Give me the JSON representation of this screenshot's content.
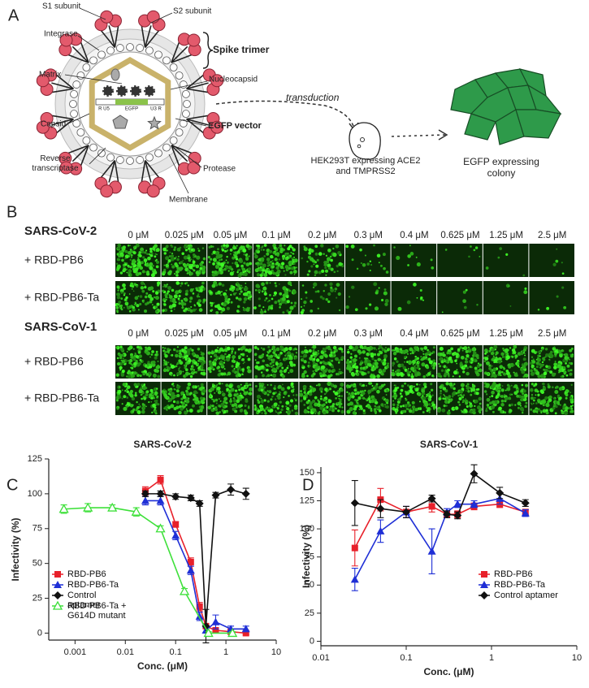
{
  "panel_labels": [
    "A",
    "B",
    "C",
    "D"
  ],
  "panel_a": {
    "labels": {
      "s1": "S1 subunit",
      "s2": "S2 subunit",
      "integrase": "Integrase",
      "matrix": "Matrix",
      "capsid": "Capsid",
      "rt": "Reverse transcriptase",
      "membrane": "Membrane",
      "protease": "Protease",
      "egfp_vector": "EGFP vector",
      "nucleocapsid": "Nucleocapsid",
      "spike_trimer": "Spike trimer"
    },
    "vector_parts": [
      "R U5",
      "EGFP",
      "U3 R"
    ],
    "transduction": "transduction",
    "cell": "HEK293T expressing ACE2 and TMPRSS2",
    "colony": "EGFP  expressing colony"
  },
  "panel_b": {
    "groups": [
      {
        "virus": "SARS-CoV-2",
        "concentrations": [
          "0 μM",
          "0.025 μM",
          "0.05 μM",
          "0.1 μM",
          "0.2 μM",
          "0.3 μM",
          "0.4 μM",
          "0.625 μM",
          "1.25 μM",
          "2.5 μM"
        ],
        "treatments": [
          "+ RBD-PB6",
          "+ RBD-PB6-Ta"
        ]
      },
      {
        "virus": "SARS-CoV-1",
        "concentrations": [
          "0 μM",
          "0.025 μM",
          "0.05 μM",
          "0.1 μM",
          "0.2 μM",
          "0.3 μM",
          "0.4 μM",
          "0.625 μM",
          "1.25 μM",
          "2.5 μM"
        ],
        "treatments": [
          "+ RBD-PB6",
          "+ RBD-PB6-Ta"
        ]
      }
    ]
  },
  "chart_data": [
    {
      "type": "scatter",
      "title": "SARS-CoV-2",
      "x_label": "Conc. (μM)",
      "y_label": "Infectivity (%)",
      "xscale": "log",
      "xlim": [
        0.0003,
        10
      ],
      "xticks": [
        0.001,
        0.01,
        0.1,
        1,
        10
      ],
      "ylim": [
        -5,
        125
      ],
      "yticks": [
        0,
        25,
        50,
        75,
        100,
        125
      ],
      "legend": "lower left",
      "series": [
        {
          "name": "RBD-PB6",
          "color": "#e8202a",
          "marker": "square",
          "x": [
            0.025,
            0.05,
            0.1,
            0.2,
            0.3,
            0.4,
            0.625,
            1.25,
            2.5
          ],
          "values": [
            102,
            110,
            78,
            51,
            19,
            5,
            2,
            1,
            0
          ],
          "errors": [
            3,
            3,
            2,
            3,
            3,
            1,
            1,
            1,
            1
          ]
        },
        {
          "name": "RBD-PB6-Ta",
          "color": "#1f2fd6",
          "marker": "triangle",
          "x": [
            0.025,
            0.05,
            0.1,
            0.2,
            0.3,
            0.4,
            0.625,
            1.25,
            2.5
          ],
          "values": [
            95,
            95,
            70,
            45,
            12,
            2,
            8,
            3,
            3
          ],
          "errors": [
            3,
            3,
            3,
            3,
            3,
            2,
            5,
            2,
            2
          ]
        },
        {
          "name": "Control aptamer",
          "color": "#111111",
          "marker": "diamond",
          "x": [
            0.025,
            0.05,
            0.1,
            0.2,
            0.3,
            0.4,
            0.625,
            1.25,
            2.5
          ],
          "values": [
            100,
            100,
            98,
            97,
            93,
            5,
            99,
            103,
            100
          ],
          "errors": [
            2,
            2,
            2,
            2,
            2,
            12,
            2,
            4,
            4
          ]
        },
        {
          "name": "RBD-PB6-Ta + G614D mutant",
          "color": "#3ee03a",
          "marker": "triangle-open",
          "x": [
            0.0006,
            0.0018,
            0.0055,
            0.0165,
            0.05,
            0.15,
            0.45,
            1.35
          ],
          "values": [
            89,
            90,
            90,
            87,
            75,
            30,
            0,
            0
          ],
          "errors": [
            3,
            3,
            2,
            3,
            2,
            2,
            1,
            1
          ]
        }
      ]
    },
    {
      "type": "scatter",
      "title": "SARS-CoV-1",
      "x_label": "Conc. (μM)",
      "y_label": "Infectivity (%)",
      "xscale": "log",
      "xlim": [
        0.01,
        10
      ],
      "xticks": [
        0.01,
        0.1,
        1,
        10
      ],
      "ylim": [
        -4,
        155
      ],
      "yticks": [
        0,
        25,
        50,
        75,
        100,
        125,
        150
      ],
      "legend": "right",
      "series": [
        {
          "name": "RBD-PB6",
          "color": "#e8202a",
          "marker": "square",
          "x": [
            0.025,
            0.05,
            0.1,
            0.2,
            0.3,
            0.4,
            0.625,
            1.25,
            2.5
          ],
          "values": [
            83,
            126,
            115,
            120,
            113,
            113,
            120,
            122,
            115
          ],
          "errors": [
            16,
            10,
            5,
            5,
            3,
            3,
            3,
            3,
            2
          ]
        },
        {
          "name": "RBD-PB6-Ta",
          "color": "#1f2fd6",
          "marker": "triangle",
          "x": [
            0.025,
            0.05,
            0.1,
            0.2,
            0.3,
            0.4,
            0.625,
            1.25,
            2.5
          ],
          "values": [
            55,
            98,
            115,
            80,
            115,
            122,
            122,
            127,
            114
          ],
          "errors": [
            10,
            10,
            5,
            20,
            3,
            3,
            3,
            5,
            3
          ]
        },
        {
          "name": "Control aptamer",
          "color": "#111111",
          "marker": "diamond",
          "x": [
            0.025,
            0.05,
            0.1,
            0.2,
            0.3,
            0.4,
            0.625,
            1.25,
            2.5
          ],
          "values": [
            123,
            118,
            115,
            127,
            113,
            112,
            149,
            132,
            123
          ],
          "errors": [
            20,
            8,
            5,
            3,
            3,
            3,
            8,
            5,
            3
          ]
        }
      ]
    }
  ]
}
